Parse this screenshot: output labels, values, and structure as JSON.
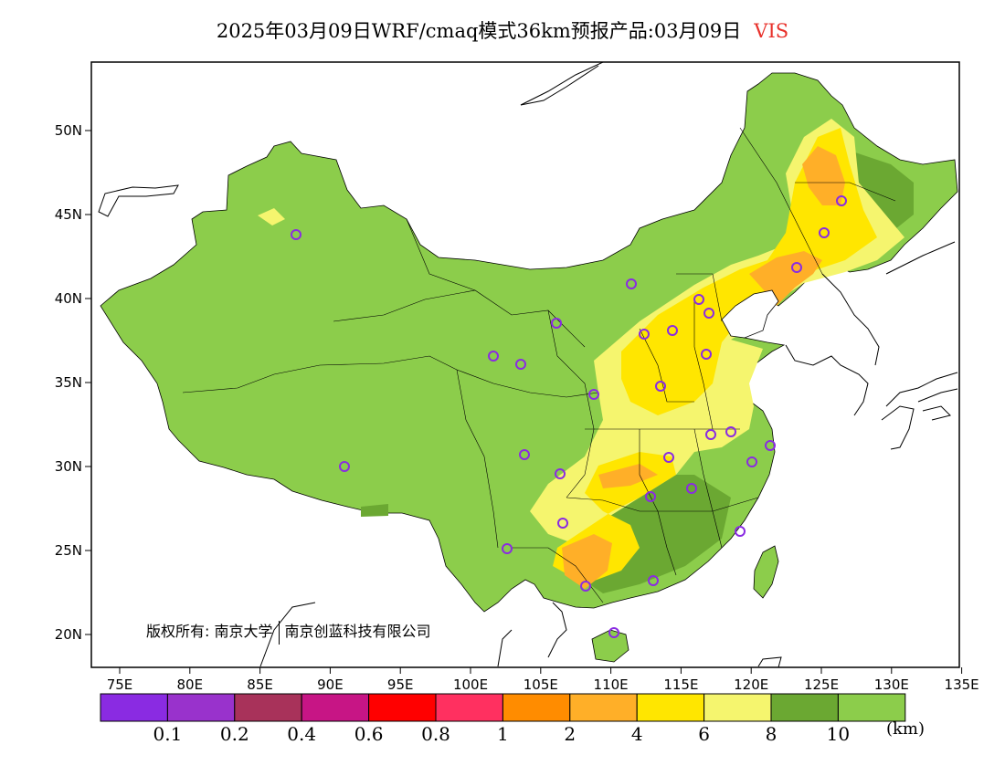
{
  "title": {
    "text": "2025年03月09日WRF/cmaq模式36km预报产品:03月09日",
    "variable": "VIS"
  },
  "axes": {
    "x_ticks": [
      "75E",
      "80E",
      "85E",
      "90E",
      "95E",
      "100E",
      "105E",
      "110E",
      "115E",
      "120E",
      "125E",
      "130E",
      "135E"
    ],
    "y_ticks": [
      "20N",
      "25N",
      "30N",
      "35N",
      "40N",
      "45N",
      "50N"
    ]
  },
  "colorbar": {
    "colors": [
      "#8a2be2",
      "#9932cc",
      "#a8325a",
      "#c71585",
      "#ff0000",
      "#ff3060",
      "#ff8c00",
      "#ffaf28",
      "#ffe600",
      "#f5f56e",
      "#6ba832",
      "#8ccd4b"
    ],
    "labels": [
      "0.1",
      "0.2",
      "0.4",
      "0.6",
      "0.8",
      "1",
      "2",
      "4",
      "6",
      "8",
      "10"
    ],
    "unit": "(km)"
  },
  "copyright": {
    "owner_label": "版权所有:",
    "org1": "南京大学",
    "org2": "南京创蓝科技有限公司"
  },
  "colors": {
    "land": "#8ccd4b",
    "dark_green": "#6ba832",
    "light_yellow": "#f5f56e",
    "yellow": "#ffe600",
    "orange": "#ffaf28",
    "station_marker": "#8a2be2"
  },
  "stations_count": 31
}
